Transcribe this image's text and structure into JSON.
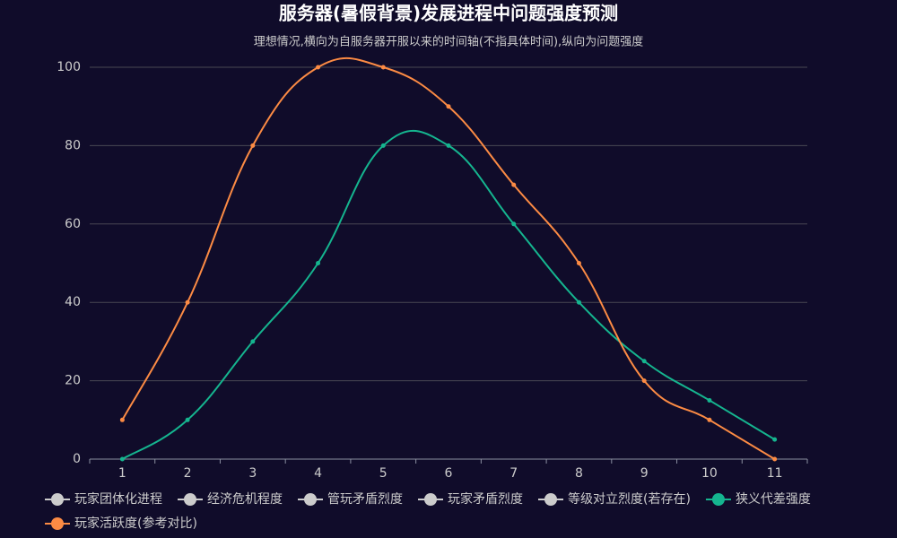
{
  "chart_data": {
    "type": "line",
    "title": "服务器(暑假背景)发展进程中问题强度预测",
    "subtitle": "理想情况,横向为自服务器开服以来的时间轴(不指具体时间),纵向为问题强度",
    "categories": [
      "1",
      "2",
      "3",
      "4",
      "5",
      "6",
      "7",
      "8",
      "9",
      "10",
      "11"
    ],
    "ylim": [
      0,
      100
    ],
    "yticks": [
      0,
      20,
      40,
      60,
      80,
      100
    ],
    "grid": true,
    "smooth": true,
    "legend": "bottom",
    "series": [
      {
        "name": "玩家团体化进程",
        "color": "#cccccc",
        "hidden": true
      },
      {
        "name": "经济危机程度",
        "color": "#cccccc",
        "hidden": true
      },
      {
        "name": "管玩矛盾烈度",
        "color": "#cccccc",
        "hidden": true
      },
      {
        "name": "玩家矛盾烈度",
        "color": "#cccccc",
        "hidden": true
      },
      {
        "name": "等级对立烈度(若存在)",
        "color": "#cccccc",
        "hidden": true
      },
      {
        "name": "狭义代差强度",
        "color": "#15b58f",
        "values": [
          0,
          10,
          30,
          50,
          80,
          80,
          60,
          40,
          25,
          15,
          5
        ]
      },
      {
        "name": "玩家活跃度(参考对比)",
        "color": "#fc8b44",
        "values": [
          10,
          40,
          80,
          100,
          100,
          90,
          70,
          50,
          20,
          10,
          0
        ]
      }
    ]
  }
}
